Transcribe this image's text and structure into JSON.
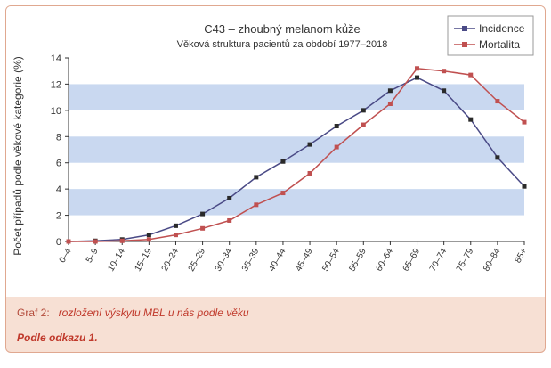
{
  "chart_data": {
    "type": "line",
    "title": "C43 – zhoubný melanom kůže",
    "subtitle": "Věková struktura pacientů za období 1977–2018",
    "ylabel": "Počet případů podle věkové kategorie (%)",
    "xlabel": "",
    "ylim": [
      0,
      14
    ],
    "yticks": [
      0,
      2,
      4,
      6,
      8,
      10,
      12,
      14
    ],
    "categories": [
      "0–4",
      "5–9",
      "10–14",
      "15–19",
      "20–24",
      "25–29",
      "30–34",
      "35–39",
      "40–44",
      "45–49",
      "50–54",
      "55–59",
      "60–64",
      "65–69",
      "70–74",
      "75–79",
      "80–84",
      "85+"
    ],
    "series": [
      {
        "name": "Incidence",
        "color": "#4a4a86",
        "values": [
          0.0,
          0.05,
          0.15,
          0.5,
          1.2,
          2.1,
          3.3,
          4.9,
          6.1,
          7.4,
          8.8,
          10.0,
          11.5,
          12.5,
          11.5,
          9.3,
          6.4,
          4.2
        ]
      },
      {
        "name": "Mortalita",
        "color": "#c05050",
        "values": [
          0.0,
          0.0,
          0.05,
          0.15,
          0.5,
          1.0,
          1.6,
          2.8,
          3.7,
          5.2,
          7.2,
          8.9,
          10.5,
          13.2,
          13.0,
          12.7,
          10.7,
          9.1
        ]
      }
    ],
    "legend_position": "top-right",
    "bands_color": "#c9d8f0"
  },
  "caption": {
    "label": "Graf 2:",
    "text": "rozložení výskytu MBL u nás podle věku"
  },
  "source": "Podle odkazu 1."
}
